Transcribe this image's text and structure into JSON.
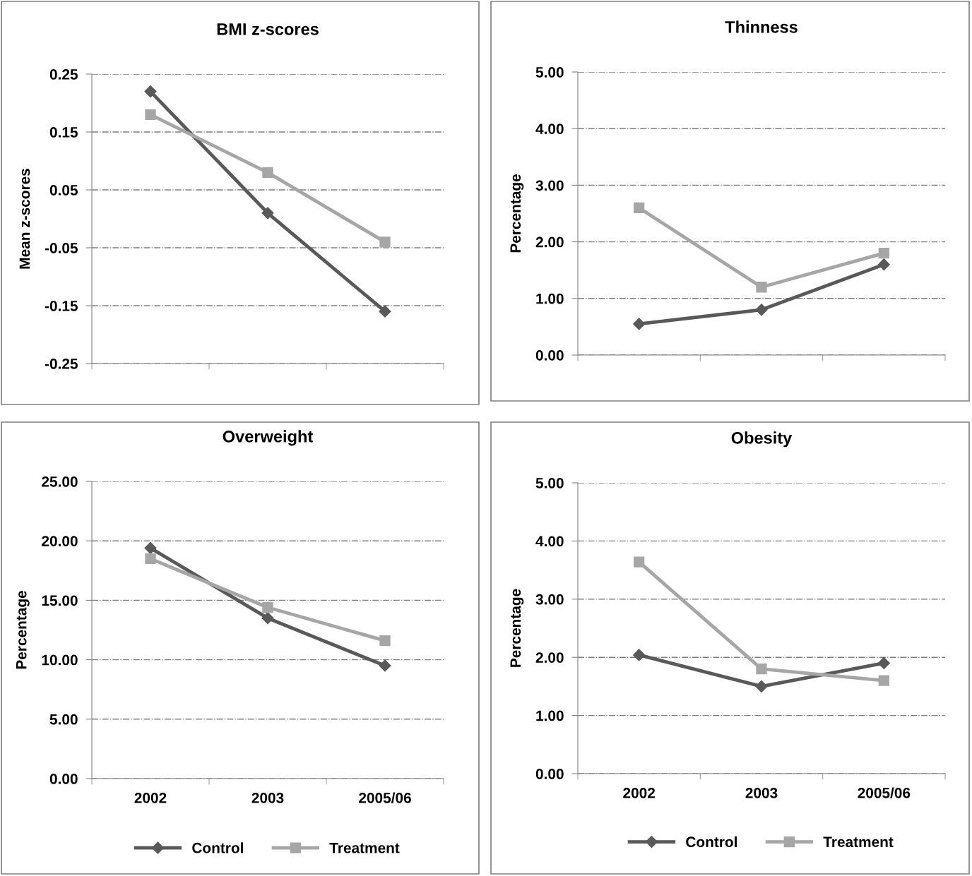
{
  "chart_data": [
    {
      "type": "line",
      "title": "BMI z-scores",
      "ylabel": "Mean z-scores",
      "categories": [
        "2002",
        "2003",
        "2005/06"
      ],
      "tick_labels": "y",
      "ylim": [
        -0.25,
        0.25
      ],
      "yticks": [
        -0.25,
        -0.15,
        -0.05,
        0.05,
        0.15,
        0.25
      ],
      "grid": "y",
      "legend": false,
      "series": [
        {
          "color": "#595959",
          "marker": "diamond",
          "values": [
            0.22,
            0.01,
            -0.16
          ]
        },
        {
          "color": "#a6a6a6",
          "marker": "square",
          "values": [
            0.18,
            0.08,
            -0.04
          ]
        }
      ]
    },
    {
      "type": "line",
      "title": "Thinness",
      "ylabel": "Percentage",
      "categories": [
        "2002",
        "2003",
        "2005/06"
      ],
      "tick_labels": "y",
      "ylim": [
        0,
        5
      ],
      "yticks": [
        {
          "value": 0,
          "label": "0.00"
        },
        {
          "value": 1,
          "label": "1.00"
        },
        {
          "value": 2,
          "label": "2.00"
        },
        {
          "value": 3,
          "label": "3.00"
        },
        {
          "value": 4,
          "label": "4.00"
        },
        {
          "value": 5,
          "label": "5.00"
        }
      ],
      "grid": "y",
      "legend": false,
      "series": [
        {
          "color": "#595959",
          "marker": "diamond",
          "values": [
            0.55,
            0.8,
            1.6
          ]
        },
        {
          "color": "#a6a6a6",
          "marker": "square",
          "values": [
            2.6,
            1.2,
            1.8
          ]
        }
      ]
    },
    {
      "type": "line",
      "title": "Overweight",
      "ylabel": "Percentage",
      "categories": [
        "2002",
        "2003",
        "2005/06"
      ],
      "ylim": [
        0,
        25
      ],
      "yticks": [
        {
          "value": 0,
          "label": "0.00"
        },
        {
          "value": 5,
          "label": "5.00"
        },
        {
          "value": 10,
          "label": "10.00"
        },
        {
          "value": 15,
          "label": "15.00"
        },
        {
          "value": 20,
          "label": "20.00"
        },
        {
          "value": 25,
          "label": "25.00"
        }
      ],
      "grid": "y",
      "legend": "bottom",
      "series": [
        {
          "name": "Control",
          "color": "#595959",
          "marker": "diamond",
          "values": [
            19.4,
            13.5,
            9.5
          ]
        },
        {
          "name": "Treatment",
          "color": "#a6a6a6",
          "marker": "square",
          "values": [
            18.5,
            14.4,
            11.6
          ]
        }
      ]
    },
    {
      "type": "line",
      "title": "Obesity",
      "ylabel": "Percentage",
      "categories": [
        "2002",
        "2003",
        "2005/06"
      ],
      "ylim": [
        0,
        5
      ],
      "yticks": [
        {
          "value": 0,
          "label": "0.00"
        },
        {
          "value": 1,
          "label": "1.00"
        },
        {
          "value": 2,
          "label": "2.00"
        },
        {
          "value": 3,
          "label": "3.00"
        },
        {
          "value": 4,
          "label": "4.00"
        },
        {
          "value": 5,
          "label": "5.00"
        }
      ],
      "grid": "y",
      "legend": "bottom",
      "series": [
        {
          "name": "Control",
          "color": "#595959",
          "marker": "diamond",
          "values": [
            2.04,
            1.5,
            1.9
          ]
        },
        {
          "name": "Treatment",
          "color": "#a6a6a6",
          "marker": "square",
          "values": [
            3.64,
            1.8,
            1.6
          ]
        }
      ]
    }
  ]
}
